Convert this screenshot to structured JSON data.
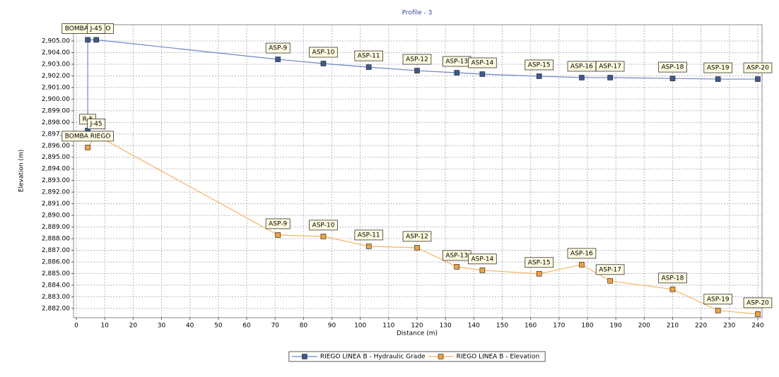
{
  "chart_data": {
    "type": "line",
    "title": "Profile - 3",
    "x_label": "Distance (m)",
    "y_label": "Elevation (m)",
    "xlim": [
      -1,
      241.5
    ],
    "ylim": [
      2881.2,
      2906.4
    ],
    "xticks": [
      0,
      10,
      20,
      30,
      40,
      50,
      60,
      70,
      80,
      90,
      100,
      110,
      120,
      130,
      140,
      150,
      160,
      170,
      180,
      190,
      200,
      210,
      220,
      230,
      240
    ],
    "yticks": [
      {
        "value": 2882,
        "label": "2,882.00"
      },
      {
        "value": 2883,
        "label": "2,883.00"
      },
      {
        "value": 2884,
        "label": "2,884.00"
      },
      {
        "value": 2885,
        "label": "2,885.00"
      },
      {
        "value": 2886,
        "label": "2,886.00"
      },
      {
        "value": 2887,
        "label": "2,887.00"
      },
      {
        "value": 2888,
        "label": "2,888.00"
      },
      {
        "value": 2889,
        "label": "2,889.00"
      },
      {
        "value": 2890,
        "label": "2,890.00"
      },
      {
        "value": 2891,
        "label": "2,891.00"
      },
      {
        "value": 2892,
        "label": "2,892.00"
      },
      {
        "value": 2893,
        "label": "2,893.00"
      },
      {
        "value": 2894,
        "label": "2,894.00"
      },
      {
        "value": 2895,
        "label": "2,895.00"
      },
      {
        "value": 2896,
        "label": "2,896.00"
      },
      {
        "value": 2897,
        "label": "2,897.00"
      },
      {
        "value": 2898,
        "label": "2,898.00"
      },
      {
        "value": 2899,
        "label": "2,899.00"
      },
      {
        "value": 2900,
        "label": "2,900.00"
      },
      {
        "value": 2901,
        "label": "2,901.00"
      },
      {
        "value": 2902,
        "label": "2,902.00"
      },
      {
        "value": 2903,
        "label": "2,903.00"
      },
      {
        "value": 2904,
        "label": "2,904.00"
      },
      {
        "value": 2905,
        "label": "2,905.00"
      }
    ],
    "grid": true,
    "legend": "bottom",
    "series": [
      {
        "name": "RIEGO LINEA B - Hydraulic Grade",
        "color": "#6e84c4",
        "marker_color": "#3d5a8c",
        "x": [
          4,
          4,
          7,
          71,
          87,
          103,
          120,
          134,
          143,
          163,
          178,
          188,
          210,
          226,
          240
        ],
        "values": [
          2897.3,
          2905.1,
          2905.1,
          2903.42,
          2903.06,
          2902.75,
          2902.45,
          2902.27,
          2902.15,
          2901.97,
          2901.85,
          2901.85,
          2901.78,
          2901.72,
          2901.72
        ],
        "labels": [
          "R-5",
          "BOMBA RIEGO",
          "J-45",
          "ASP-9",
          "ASP-10",
          "ASP-11",
          "ASP-12",
          "ASP-13",
          "ASP-14",
          "ASP-15",
          "ASP-16",
          "ASP-17",
          "ASP-18",
          "ASP-19",
          "ASP-20"
        ]
      },
      {
        "name": "RIEGO LINEA B - Elevation",
        "color": "#f5b565",
        "marker_color": "#f0a040",
        "x": [
          4,
          7,
          71,
          87,
          103,
          120,
          134,
          143,
          163,
          178,
          188,
          210,
          226,
          240
        ],
        "values": [
          2895.84,
          2896.9,
          2888.31,
          2888.19,
          2887.34,
          2887.22,
          2885.58,
          2885.28,
          2884.98,
          2885.76,
          2884.37,
          2883.64,
          2881.82,
          2881.51
        ],
        "labels": [
          "BOMBA RIEGO",
          "J-45",
          "ASP-9",
          "ASP-10",
          "ASP-11",
          "ASP-12",
          "ASP-13",
          "ASP-14",
          "ASP-15",
          "ASP-16",
          "ASP-17",
          "ASP-18",
          "ASP-19",
          "ASP-20"
        ]
      }
    ]
  }
}
